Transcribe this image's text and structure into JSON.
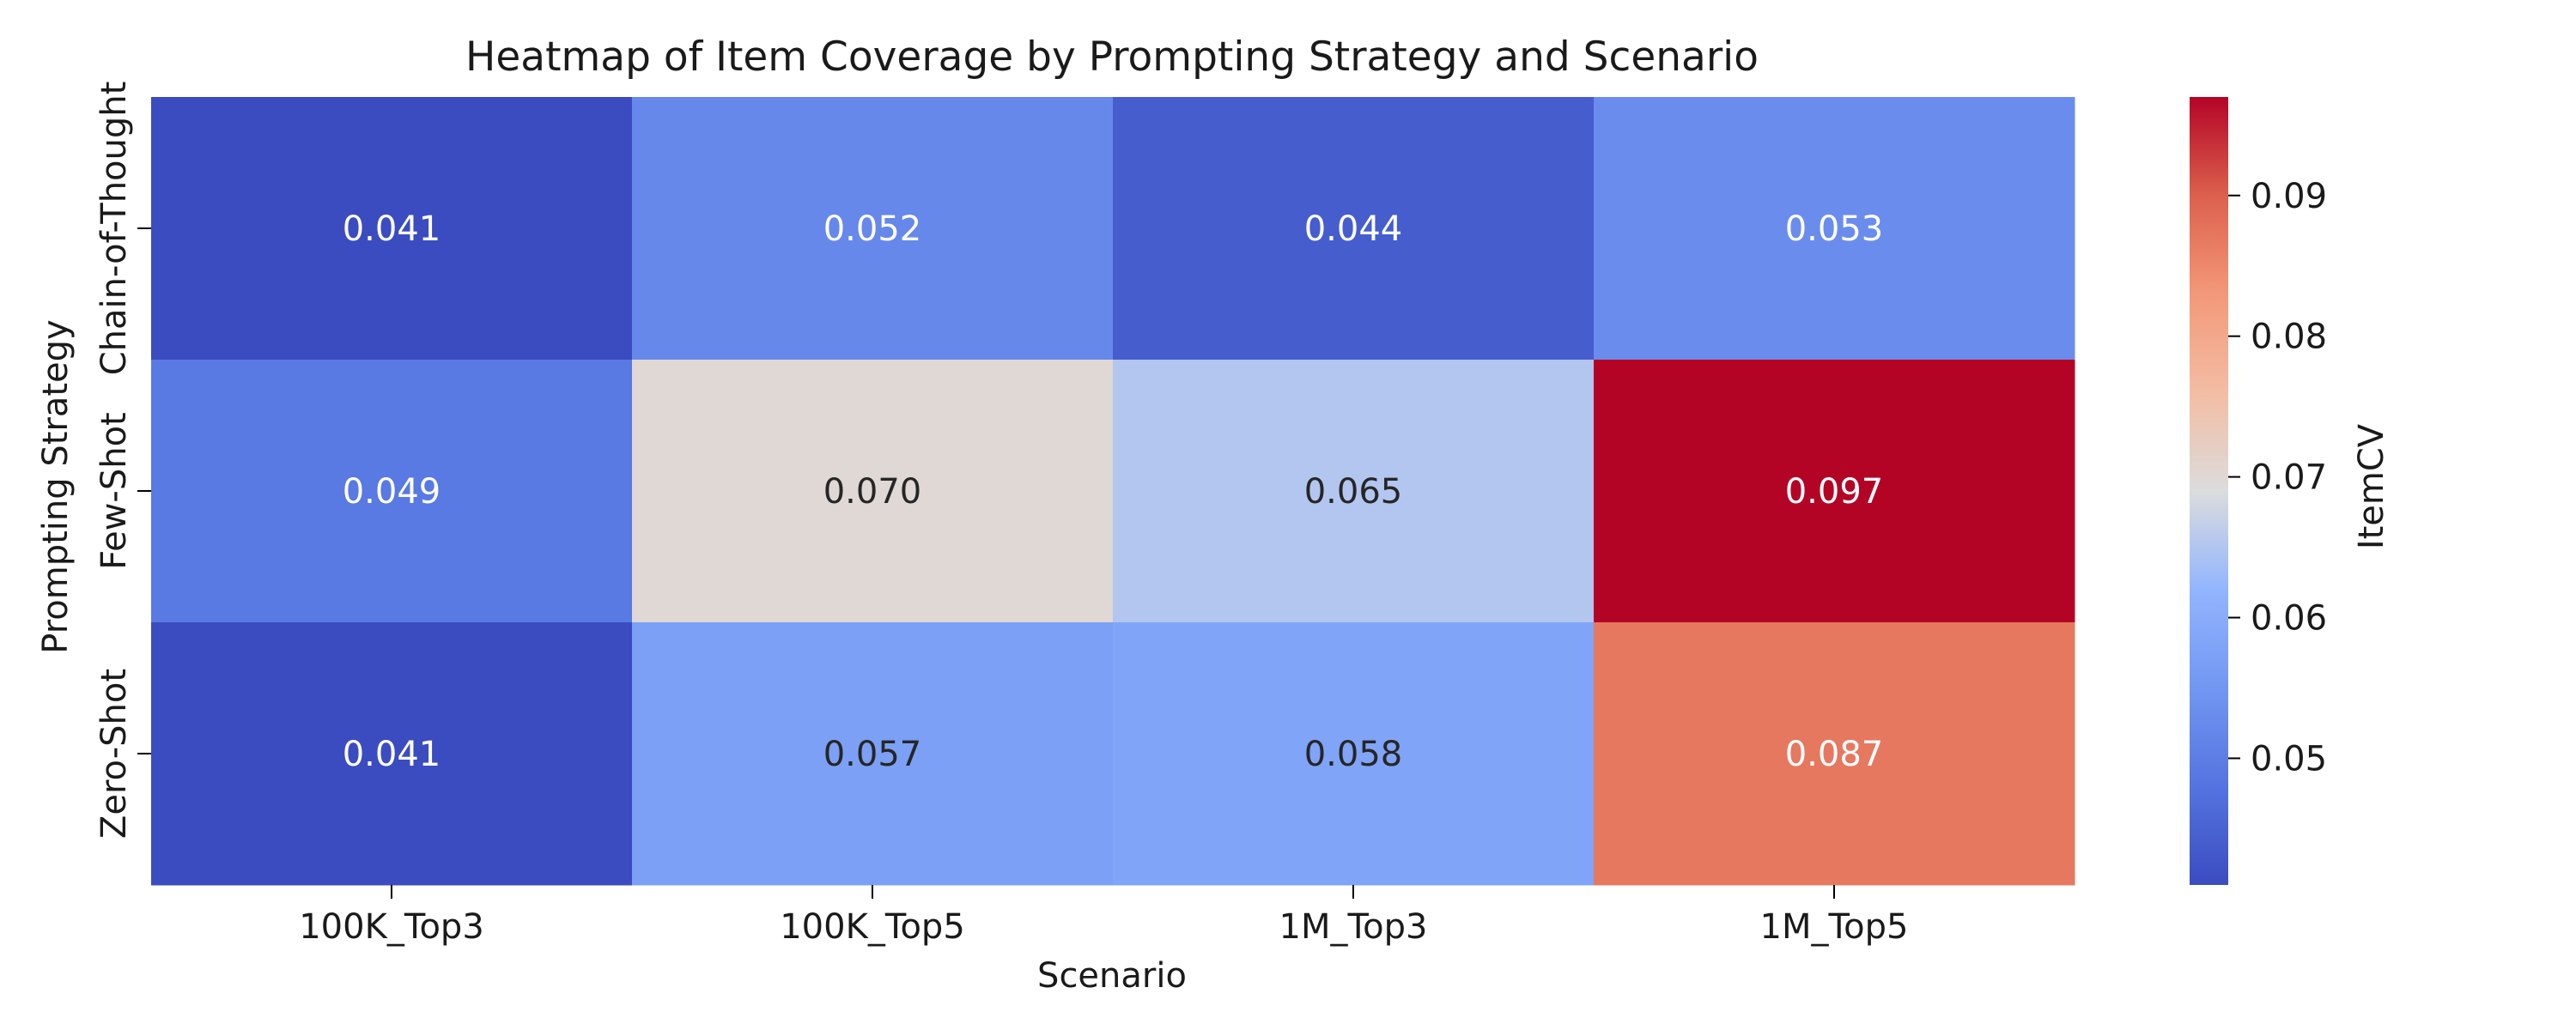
{
  "chart_data": {
    "type": "heatmap",
    "title": "Heatmap of Item Coverage by Prompting Strategy and Scenario",
    "xlabel": "Scenario",
    "ylabel": "Prompting Strategy",
    "x_categories": [
      "100K_Top3",
      "100K_Top5",
      "1M_Top3",
      "1M_Top5"
    ],
    "y_categories": [
      "Chain-of-Thought",
      "Few-Shot",
      "Zero-Shot"
    ],
    "values": [
      [
        0.041,
        0.052,
        0.044,
        0.053
      ],
      [
        0.049,
        0.07,
        0.065,
        0.097
      ],
      [
        0.041,
        0.057,
        0.058,
        0.087
      ]
    ],
    "value_labels": [
      [
        "0.041",
        "0.052",
        "0.044",
        "0.053"
      ],
      [
        "0.049",
        "0.070",
        "0.065",
        "0.097"
      ],
      [
        "0.041",
        "0.057",
        "0.058",
        "0.087"
      ]
    ],
    "colorbar": {
      "label": "ItemCV",
      "range": [
        0.041,
        0.097
      ],
      "ticks": [
        0.05,
        0.06,
        0.07,
        0.08,
        0.09
      ],
      "tick_labels": [
        "0.05",
        "0.06",
        "0.07",
        "0.08",
        "0.09"
      ],
      "colormap": "coolwarm"
    }
  }
}
